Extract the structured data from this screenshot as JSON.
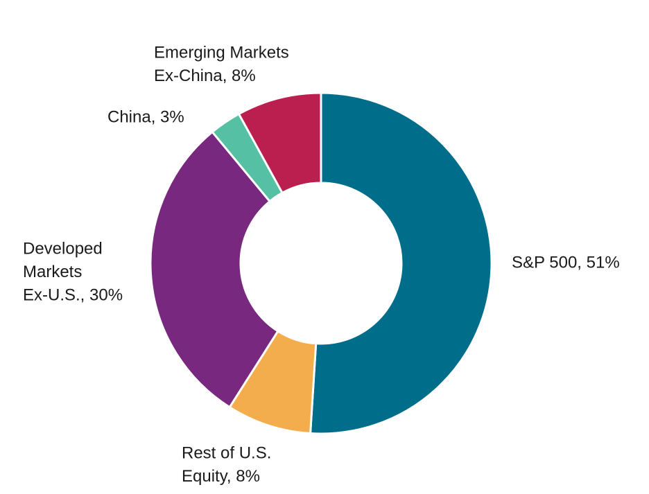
{
  "chart_data": {
    "type": "donut",
    "values": [
      51,
      8,
      30,
      3,
      8
    ],
    "value_labels": [
      [
        "S&P 500, 51%"
      ],
      [
        "Rest of U.S.",
        "Equity, 8%"
      ],
      [
        "Developed",
        "Markets",
        "Ex-U.S., 30%"
      ],
      [
        "China, 3%"
      ],
      [
        "Emerging Markets",
        "Ex-China, 8%"
      ]
    ],
    "colors": [
      "#006d8a",
      "#f4ad4c",
      "#78287e",
      "#55c0a3",
      "#bb1f4f"
    ]
  }
}
